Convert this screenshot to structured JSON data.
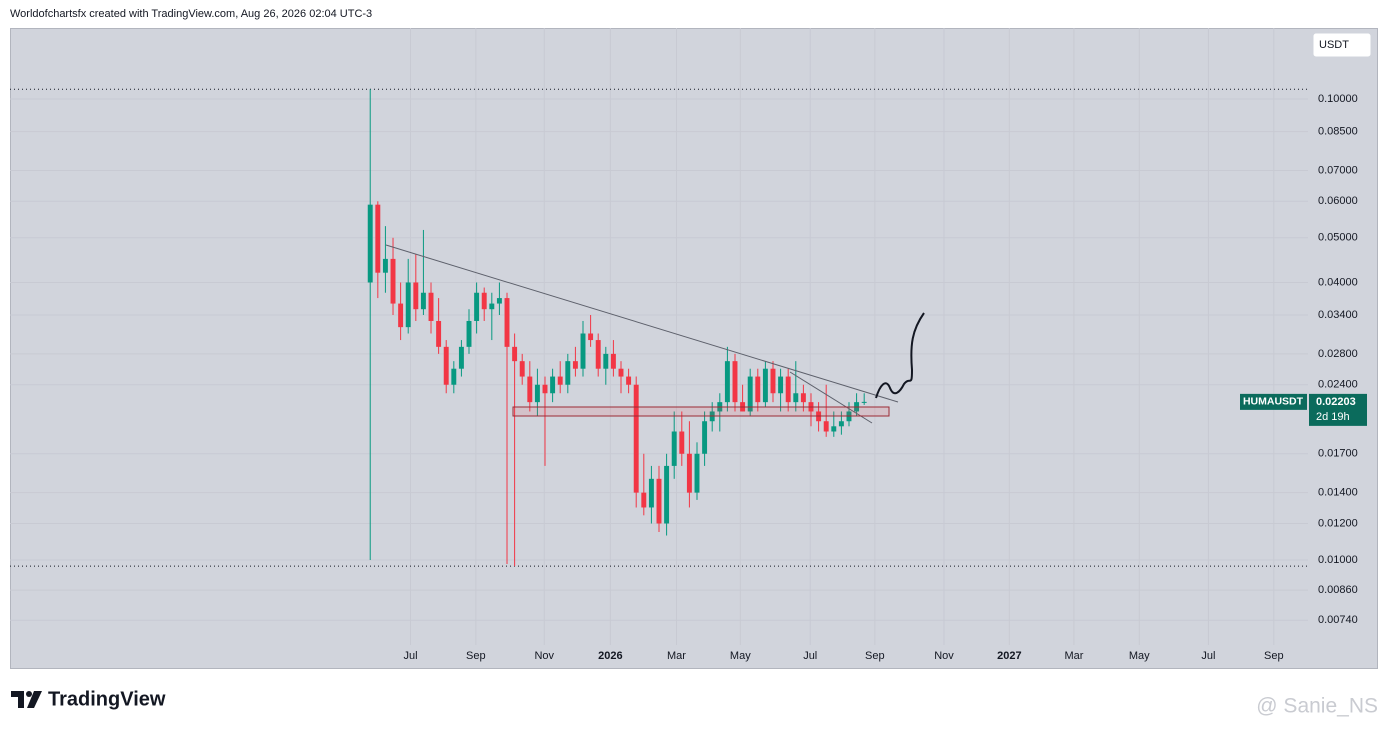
{
  "header": "Worldofchartsfx created with TradingView.com, Aug 26, 2026 02:04 UTC-3",
  "brand": "TradingView",
  "watermark": "@ Sanie_NS",
  "chart_data": {
    "type": "candlestick",
    "currency": "USDT",
    "log_scale": true,
    "grid": true,
    "up_color": "#089981",
    "down_color": "#f23645",
    "countdown": "2d 19h",
    "x": [
      0,
      1,
      2,
      3,
      4,
      5,
      6,
      7,
      8,
      9,
      10,
      11,
      12,
      13,
      14,
      15,
      16,
      17,
      18,
      19,
      20,
      21,
      22,
      23,
      24,
      25,
      26,
      27,
      28,
      29,
      30,
      31,
      32,
      33,
      34,
      35,
      36,
      37,
      38,
      39,
      40,
      41,
      42,
      43,
      44,
      45,
      46,
      47,
      48,
      49,
      50,
      51,
      52,
      53,
      54,
      55,
      56,
      57,
      58,
      59,
      60,
      61,
      62,
      63,
      64,
      65
    ],
    "series": [
      {
        "name": "HUMAUSDT",
        "open": [
          0.04,
          0.059,
          0.042,
          0.045,
          0.036,
          0.032,
          0.04,
          0.035,
          0.038,
          0.033,
          0.029,
          0.024,
          0.026,
          0.029,
          0.033,
          0.038,
          0.035,
          0.036,
          0.037,
          0.029,
          0.027,
          0.025,
          0.022,
          0.024,
          0.023,
          0.025,
          0.024,
          0.027,
          0.026,
          0.031,
          0.03,
          0.026,
          0.028,
          0.026,
          0.025,
          0.024,
          0.014,
          0.013,
          0.015,
          0.012,
          0.016,
          0.019,
          0.017,
          0.014,
          0.017,
          0.02,
          0.021,
          0.022,
          0.027,
          0.022,
          0.021,
          0.025,
          0.022,
          0.026,
          0.023,
          0.025,
          0.022,
          0.023,
          0.022,
          0.021,
          0.02,
          0.019,
          0.0195,
          0.02,
          0.021,
          0.022
        ],
        "high": [
          0.105,
          0.06,
          0.053,
          0.05,
          0.04,
          0.045,
          0.046,
          0.052,
          0.04,
          0.037,
          0.03,
          0.027,
          0.03,
          0.035,
          0.04,
          0.039,
          0.038,
          0.04,
          0.038,
          0.031,
          0.028,
          0.027,
          0.026,
          0.025,
          0.026,
          0.027,
          0.028,
          0.029,
          0.033,
          0.034,
          0.031,
          0.029,
          0.03,
          0.027,
          0.026,
          0.025,
          0.017,
          0.016,
          0.016,
          0.017,
          0.021,
          0.021,
          0.02,
          0.018,
          0.021,
          0.022,
          0.023,
          0.029,
          0.028,
          0.024,
          0.026,
          0.026,
          0.027,
          0.027,
          0.026,
          0.026,
          0.027,
          0.024,
          0.023,
          0.022,
          0.024,
          0.021,
          0.021,
          0.022,
          0.023,
          0.023
        ],
        "low": [
          0.01,
          0.037,
          0.038,
          0.034,
          0.03,
          0.031,
          0.033,
          0.034,
          0.031,
          0.028,
          0.023,
          0.023,
          0.025,
          0.028,
          0.031,
          0.033,
          0.03,
          0.034,
          0.0098,
          0.0097,
          0.024,
          0.021,
          0.0205,
          0.016,
          0.022,
          0.023,
          0.023,
          0.025,
          0.025,
          0.029,
          0.025,
          0.024,
          0.025,
          0.023,
          0.023,
          0.013,
          0.0125,
          0.012,
          0.0115,
          0.0113,
          0.015,
          0.016,
          0.013,
          0.0135,
          0.016,
          0.019,
          0.019,
          0.021,
          0.021,
          0.021,
          0.0205,
          0.021,
          0.0215,
          0.022,
          0.021,
          0.021,
          0.021,
          0.021,
          0.0195,
          0.019,
          0.0185,
          0.0185,
          0.0187,
          0.0195,
          0.0205,
          0.0217
        ],
        "close": [
          0.059,
          0.042,
          0.045,
          0.036,
          0.032,
          0.04,
          0.035,
          0.038,
          0.033,
          0.029,
          0.024,
          0.026,
          0.029,
          0.033,
          0.038,
          0.035,
          0.036,
          0.037,
          0.029,
          0.027,
          0.025,
          0.022,
          0.024,
          0.023,
          0.025,
          0.024,
          0.027,
          0.026,
          0.031,
          0.03,
          0.026,
          0.028,
          0.026,
          0.025,
          0.024,
          0.014,
          0.013,
          0.015,
          0.012,
          0.016,
          0.019,
          0.017,
          0.014,
          0.017,
          0.02,
          0.021,
          0.022,
          0.027,
          0.022,
          0.021,
          0.025,
          0.022,
          0.026,
          0.023,
          0.025,
          0.022,
          0.023,
          0.022,
          0.021,
          0.02,
          0.019,
          0.0195,
          0.02,
          0.021,
          0.022,
          0.02203
        ]
      }
    ],
    "xlim": [
      -47.4,
      123.4
    ],
    "xticks": [
      {
        "value": 5.3,
        "label": "Jul"
      },
      {
        "value": 13.9,
        "label": "Sep"
      },
      {
        "value": 22.9,
        "label": "Nov"
      },
      {
        "value": 31.6,
        "label": "2026"
      },
      {
        "value": 40.3,
        "label": "Mar"
      },
      {
        "value": 48.7,
        "label": "May"
      },
      {
        "value": 57.9,
        "label": "Jul"
      },
      {
        "value": 66.4,
        "label": "Sep"
      },
      {
        "value": 75.5,
        "label": "Nov"
      },
      {
        "value": 84.1,
        "label": "2027"
      },
      {
        "value": 92.6,
        "label": "Mar"
      },
      {
        "value": 101.2,
        "label": "May"
      },
      {
        "value": 110.3,
        "label": "Jul"
      },
      {
        "value": 118.9,
        "label": "Sep"
      }
    ],
    "ylim": [
      0.00654,
      0.1426
    ],
    "yticks": [
      {
        "value": 0.0074,
        "label": "0.00740"
      },
      {
        "value": 0.0086,
        "label": "0.00860"
      },
      {
        "value": 0.01,
        "label": "0.01000"
      },
      {
        "value": 0.012,
        "label": "0.01200"
      },
      {
        "value": 0.014,
        "label": "0.01400"
      },
      {
        "value": 0.017,
        "label": "0.01700"
      },
      {
        "value": 0.024,
        "label": "0.02400"
      },
      {
        "value": 0.028,
        "label": "0.02800"
      },
      {
        "value": 0.034,
        "label": "0.03400"
      },
      {
        "value": 0.04,
        "label": "0.04000"
      },
      {
        "value": 0.05,
        "label": "0.05000"
      },
      {
        "value": 0.06,
        "label": "0.06000"
      },
      {
        "value": 0.07,
        "label": "0.07000"
      },
      {
        "value": 0.085,
        "label": "0.08500"
      },
      {
        "value": 0.1,
        "label": "0.10000"
      }
    ]
  }
}
